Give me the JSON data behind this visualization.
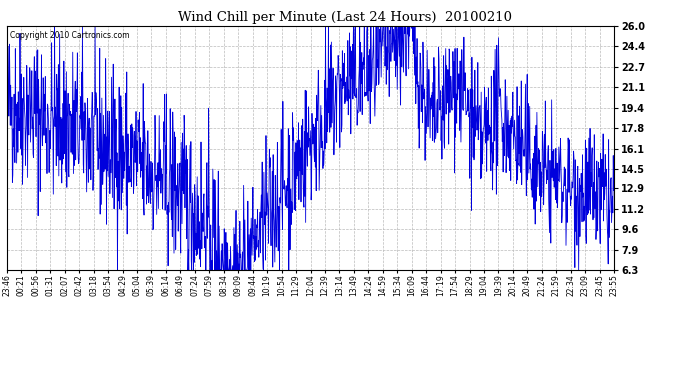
{
  "title": "Wind Chill per Minute (Last 24 Hours)  20100210",
  "copyright_text": "Copyright 2010 Cartronics.com",
  "line_color": "#0000dd",
  "background_color": "#ffffff",
  "plot_background": "#ffffff",
  "y_ticks": [
    6.3,
    7.9,
    9.6,
    11.2,
    12.9,
    14.5,
    16.1,
    17.8,
    19.4,
    21.1,
    22.7,
    24.4,
    26.0
  ],
  "ylim": [
    6.3,
    26.0
  ],
  "x_labels": [
    "23:46",
    "00:21",
    "00:56",
    "01:31",
    "02:07",
    "02:42",
    "03:18",
    "03:54",
    "04:29",
    "05:04",
    "05:39",
    "06:14",
    "06:49",
    "07:24",
    "07:59",
    "08:34",
    "09:09",
    "09:44",
    "10:19",
    "10:54",
    "11:29",
    "12:04",
    "12:39",
    "13:14",
    "13:49",
    "14:24",
    "14:59",
    "15:34",
    "16:09",
    "16:44",
    "17:19",
    "17:54",
    "18:29",
    "19:04",
    "19:39",
    "20:14",
    "20:49",
    "21:24",
    "21:59",
    "22:34",
    "23:09",
    "23:45",
    "23:55"
  ],
  "num_points": 1440,
  "seed": 42,
  "grid_color": "#bbbbbb",
  "grid_style": "--"
}
